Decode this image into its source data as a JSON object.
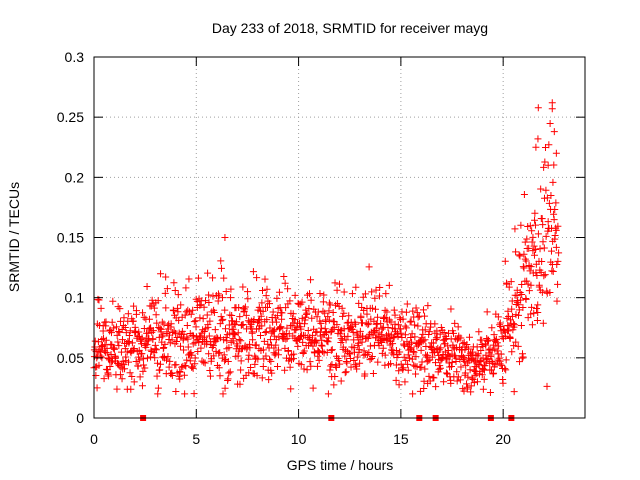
{
  "chart_data": {
    "type": "scatter",
    "title": "Day 233 of 2018, SRMTID for receiver mayg",
    "xlabel": "GPS time / hours",
    "ylabel": "SRMTID / TECUs",
    "xlim": [
      0,
      24
    ],
    "ylim": [
      0,
      0.3
    ],
    "x_ticks": [
      0,
      5,
      10,
      15,
      20
    ],
    "x_tick_labels": [
      "0",
      "5",
      "10",
      "15",
      "20"
    ],
    "y_ticks": [
      0,
      0.05,
      0.1,
      0.15,
      0.2,
      0.25,
      0.3
    ],
    "y_tick_labels": [
      "0",
      "0.05",
      "0.1",
      "0.15",
      "0.2",
      "0.25",
      "0.3"
    ],
    "grid": true,
    "marker": "+",
    "series_color": "#ff0000",
    "n_points": 1450,
    "random_seed": 233,
    "data_range_hours": [
      0,
      22.7
    ],
    "profile": [
      {
        "hour": 0.0,
        "median": 0.055,
        "spread": 0.016
      },
      {
        "hour": 1.0,
        "median": 0.058,
        "spread": 0.017
      },
      {
        "hour": 2.0,
        "median": 0.058,
        "spread": 0.017
      },
      {
        "hour": 3.0,
        "median": 0.068,
        "spread": 0.02
      },
      {
        "hour": 4.0,
        "median": 0.068,
        "spread": 0.02
      },
      {
        "hour": 5.0,
        "median": 0.068,
        "spread": 0.02
      },
      {
        "hour": 6.0,
        "median": 0.072,
        "spread": 0.021
      },
      {
        "hour": 7.0,
        "median": 0.068,
        "spread": 0.019
      },
      {
        "hour": 8.0,
        "median": 0.07,
        "spread": 0.019
      },
      {
        "hour": 9.0,
        "median": 0.07,
        "spread": 0.019
      },
      {
        "hour": 10.0,
        "median": 0.068,
        "spread": 0.018
      },
      {
        "hour": 11.0,
        "median": 0.07,
        "spread": 0.019
      },
      {
        "hour": 12.0,
        "median": 0.068,
        "spread": 0.018
      },
      {
        "hour": 13.0,
        "median": 0.068,
        "spread": 0.018
      },
      {
        "hour": 14.0,
        "median": 0.068,
        "spread": 0.018
      },
      {
        "hour": 15.0,
        "median": 0.064,
        "spread": 0.017
      },
      {
        "hour": 16.0,
        "median": 0.058,
        "spread": 0.015
      },
      {
        "hour": 17.0,
        "median": 0.058,
        "spread": 0.015
      },
      {
        "hour": 18.0,
        "median": 0.052,
        "spread": 0.014
      },
      {
        "hour": 19.0,
        "median": 0.05,
        "spread": 0.013
      },
      {
        "hour": 19.8,
        "median": 0.058,
        "spread": 0.015
      },
      {
        "hour": 20.5,
        "median": 0.09,
        "spread": 0.025
      },
      {
        "hour": 21.2,
        "median": 0.12,
        "spread": 0.03
      },
      {
        "hour": 21.8,
        "median": 0.14,
        "spread": 0.04
      },
      {
        "hour": 22.3,
        "median": 0.145,
        "spread": 0.045
      },
      {
        "hour": 22.7,
        "median": 0.15,
        "spread": 0.045
      }
    ],
    "notable_points": [
      {
        "x": 6.4,
        "y": 0.15
      },
      {
        "x": 22.4,
        "y": 0.262
      },
      {
        "x": 22.4,
        "y": 0.257
      },
      {
        "x": 22.5,
        "y": 0.238
      },
      {
        "x": 21.7,
        "y": 0.232
      },
      {
        "x": 21.6,
        "y": 0.225
      },
      {
        "x": 22.6,
        "y": 0.22
      },
      {
        "x": 22.2,
        "y": 0.21
      },
      {
        "x": 0.15,
        "y": 0.025
      },
      {
        "x": 4.0,
        "y": 0.022
      }
    ],
    "zero_markers_hours": [
      2.4,
      11.6,
      15.9,
      16.7,
      19.4,
      20.4
    ]
  }
}
